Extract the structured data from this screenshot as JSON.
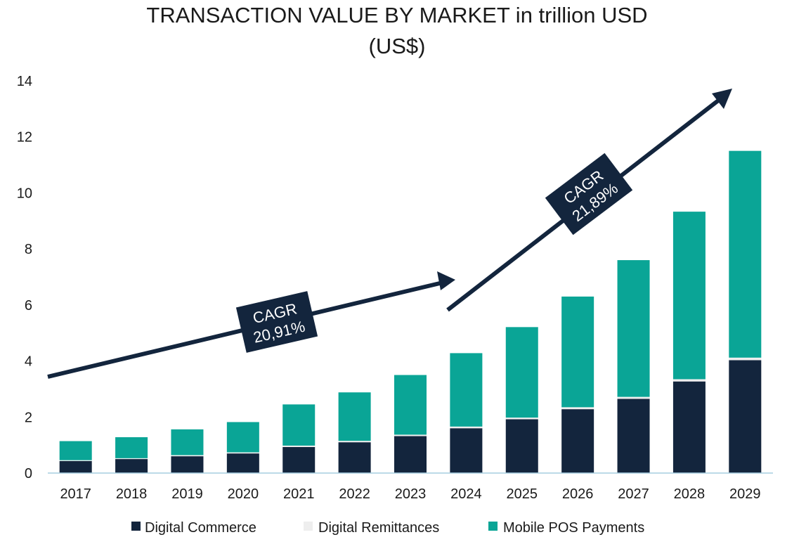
{
  "chart_data": {
    "type": "bar",
    "stacked": true,
    "title": "TRANSACTION VALUE BY MARKET in trillion USD",
    "subtitle": "(US$)",
    "xlabel": "",
    "ylabel": "",
    "ylim": [
      0,
      14
    ],
    "yticks": [
      0,
      2,
      4,
      6,
      8,
      10,
      12,
      14
    ],
    "grid": false,
    "legend_position": "bottom",
    "categories": [
      "2017",
      "2018",
      "2019",
      "2020",
      "2021",
      "2022",
      "2023",
      "2024",
      "2025",
      "2026",
      "2027",
      "2028",
      "2029"
    ],
    "series": [
      {
        "name": "Digital Commerce",
        "color": "#13253d",
        "values": [
          0.43,
          0.5,
          0.6,
          0.7,
          0.93,
          1.1,
          1.32,
          1.6,
          1.92,
          2.28,
          2.65,
          3.27,
          4.03
        ]
      },
      {
        "name": "Digital Remittances",
        "color": "#eeeeee",
        "values": [
          0.03,
          0.03,
          0.04,
          0.04,
          0.05,
          0.05,
          0.05,
          0.06,
          0.06,
          0.07,
          0.07,
          0.08,
          0.09
        ]
      },
      {
        "name": "Mobile POS Payments",
        "color": "#0aa596",
        "values": [
          0.68,
          0.75,
          0.92,
          1.08,
          1.47,
          1.73,
          2.13,
          2.62,
          3.23,
          3.95,
          4.88,
          5.98,
          7.38
        ]
      }
    ],
    "annotations": [
      {
        "label": "CAGR",
        "value": "20,91%"
      },
      {
        "label": "CAGR",
        "value": "21,89%"
      }
    ]
  }
}
